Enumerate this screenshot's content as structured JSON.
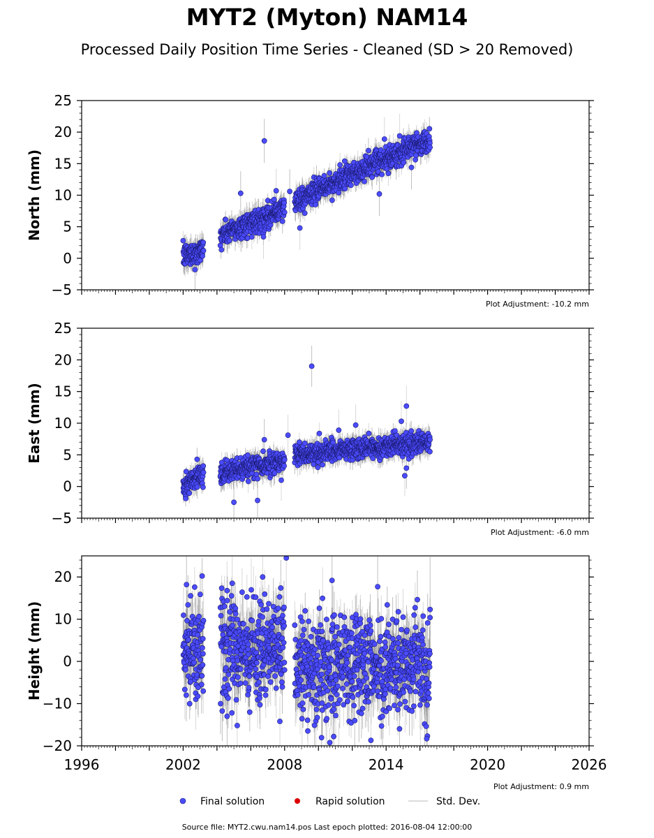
{
  "title": "MYT2 (Myton) NAM14",
  "subtitle": "Processed Daily Position Time Series - Cleaned (SD > 20 Removed)",
  "legend": {
    "final": "Final solution",
    "rapid": "Rapid solution",
    "stddev": "Std. Dev."
  },
  "colors": {
    "final": "#4b4bff",
    "final_edge": "#1a1a6e",
    "rapid": "#dd0000",
    "errorbar": "#a8a8a8",
    "errorbar_dense": "#4a4a4a"
  },
  "source_note": "Source file: MYT2.cwu.nam14.pos  Last epoch plotted: 2016-08-04 12:00:00",
  "chart_data": [
    {
      "type": "scatter",
      "name": "north",
      "ylabel": "North (mm)",
      "adjustment": "Plot Adjustment: -10.2 mm",
      "xlim": [
        1996,
        2026
      ],
      "ylim": [
        -5,
        25
      ],
      "yticks": [
        -5,
        0,
        5,
        10,
        15,
        20,
        25
      ],
      "ytick_labels": [
        "−5",
        "0",
        "5",
        "10",
        "15",
        "20",
        "25"
      ],
      "trend": {
        "segments": [
          {
            "x0": 2002.0,
            "x1": 2003.2,
            "y0": 0.3,
            "y1": 1.4
          },
          {
            "x0": 2004.2,
            "x1": 2008.0,
            "y0": 3.6,
            "y1": 7.9
          },
          {
            "x0": 2008.6,
            "x1": 2016.6,
            "y0": 9.0,
            "y1": 19.0
          }
        ],
        "sigma": 0.9,
        "err": 1.4
      },
      "outliers": [
        [
          2006.8,
          18.6
        ],
        [
          2006.75,
          3.4
        ],
        [
          2005.4,
          10.3
        ],
        [
          2007.5,
          10.7
        ],
        [
          2008.3,
          10.6
        ],
        [
          2008.9,
          4.8
        ],
        [
          2013.6,
          10.2
        ],
        [
          2013.9,
          18.9
        ],
        [
          2015.5,
          14.4
        ],
        [
          2014.8,
          19.4
        ],
        [
          2002.7,
          -1.8
        ]
      ]
    },
    {
      "type": "scatter",
      "name": "east",
      "ylabel": "East (mm)",
      "adjustment": "Plot Adjustment: -6.0 mm",
      "xlim": [
        1996,
        2026
      ],
      "ylim": [
        -5,
        25
      ],
      "yticks": [
        -5,
        0,
        5,
        10,
        15,
        20,
        25
      ],
      "ytick_labels": [
        "−5",
        "0",
        "5",
        "10",
        "15",
        "20",
        "25"
      ],
      "trend": {
        "segments": [
          {
            "x0": 2002.0,
            "x1": 2003.2,
            "y0": 0.0,
            "y1": 2.5
          },
          {
            "x0": 2004.2,
            "x1": 2008.0,
            "y0": 2.0,
            "y1": 4.2
          },
          {
            "x0": 2008.6,
            "x1": 2016.6,
            "y0": 5.0,
            "y1": 7.0
          }
        ],
        "sigma": 0.8,
        "err": 1.3
      },
      "outliers": [
        [
          2009.6,
          19.0
        ],
        [
          2015.2,
          12.7
        ],
        [
          2015.1,
          1.7
        ],
        [
          2005.0,
          -2.5
        ],
        [
          2006.4,
          -2.2
        ],
        [
          2007.8,
          1.0
        ],
        [
          2008.2,
          8.1
        ],
        [
          2012.2,
          9.7
        ],
        [
          2014.9,
          10.3
        ],
        [
          2015.2,
          2.9
        ],
        [
          2006.8,
          7.4
        ],
        [
          2011.2,
          8.9
        ]
      ]
    },
    {
      "type": "scatter",
      "name": "height",
      "ylabel": "Height (mm)",
      "adjustment": "Plot Adjustment: 0.9 mm",
      "xlim": [
        1996,
        2026
      ],
      "ylim": [
        -20,
        25
      ],
      "yticks": [
        -20,
        -10,
        0,
        10,
        20
      ],
      "ytick_labels": [
        "−20",
        "−10",
        "0",
        "10",
        "20"
      ],
      "xticks": [
        1996,
        2002,
        2008,
        2014,
        2020,
        2026
      ],
      "xtick_labels": [
        "1996",
        "2002",
        "2008",
        "2014",
        "2020",
        "2026"
      ],
      "trend": {
        "segments": [
          {
            "x0": 2002.0,
            "x1": 2003.2,
            "y0": 3.0,
            "y1": 3.0
          },
          {
            "x0": 2004.2,
            "x1": 2008.0,
            "y0": 3.0,
            "y1": 3.0
          },
          {
            "x0": 2008.6,
            "x1": 2016.6,
            "y0": -1.0,
            "y1": -1.0
          }
        ],
        "sigma": 6.0,
        "err": 5.0
      },
      "outliers": [
        [
          2008.1,
          24.5
        ],
        [
          2006.7,
          20.0
        ],
        [
          2002.2,
          18.2
        ],
        [
          2004.9,
          18.5
        ],
        [
          2010.8,
          19.2
        ],
        [
          2016.6,
          12.3
        ],
        [
          2013.1,
          -18.7
        ],
        [
          2016.4,
          -18.3
        ],
        [
          2005.2,
          -15.2
        ],
        [
          2004.6,
          -13.0
        ],
        [
          2013.5,
          17.7
        ]
      ]
    }
  ]
}
